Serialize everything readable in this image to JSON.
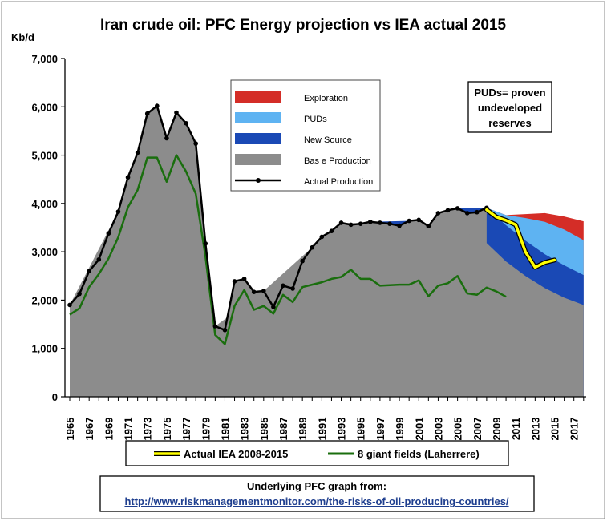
{
  "chart_data": {
    "type": "area",
    "title": "Iran crude oil: PFC Energy projection vs IEA actual 2015",
    "ylabel": "Kb/d",
    "xlabel": "",
    "ylim": [
      0,
      7000
    ],
    "yticks": [
      "0",
      "1,000",
      "2,000",
      "3,000",
      "4,000",
      "5,000",
      "6,000",
      "7,000"
    ],
    "xlim": [
      1965,
      2018
    ],
    "xticks": [
      "1965",
      "1967",
      "1969",
      "1971",
      "1973",
      "1975",
      "1977",
      "1979",
      "1981",
      "1983",
      "1985",
      "1987",
      "1989",
      "1991",
      "1993",
      "1995",
      "1997",
      "1999",
      "2001",
      "2003",
      "2005",
      "2007",
      "2009",
      "2011",
      "2013",
      "2015",
      "2017"
    ],
    "grid": false,
    "legend_position": "top-center",
    "colors": {
      "exploration": "#d42d27",
      "puds": "#5eb3f2",
      "new_source": "#1a49b5",
      "base_production": "#8c8c8c",
      "actual_production": "#000000",
      "actual_iea": "#ffff00",
      "giant_fields": "#1a6e0e"
    },
    "legend": [
      {
        "key": "exploration",
        "label": "Exploration"
      },
      {
        "key": "puds",
        "label": "PUDs"
      },
      {
        "key": "new_source",
        "label": "New Source"
      },
      {
        "key": "base_production",
        "label": "Bas e Production"
      },
      {
        "key": "actual_production",
        "label": "Actual Production"
      }
    ],
    "bottom_legend": [
      {
        "key": "actual_iea",
        "label": "Actual IEA 2008-2015"
      },
      {
        "key": "giant_fields",
        "label": "8 giant fields (Laherrere)"
      }
    ],
    "note": [
      "PUDs= proven",
      "undeveloped",
      "reserves"
    ],
    "source_label": "Underlying PFC graph from:",
    "source_url": "http://www.riskmanagementmonitor.com/the-risks-of-oil-producing-countries/",
    "series": [
      {
        "name": "Actual Production",
        "x": [
          1965,
          1966,
          1967,
          1968,
          1969,
          1970,
          1971,
          1972,
          1973,
          1974,
          1975,
          1976,
          1977,
          1978,
          1979,
          1980,
          1981,
          1982,
          1983,
          1984,
          1985,
          1986,
          1987,
          1988,
          1989,
          1990,
          1991,
          1992,
          1993,
          1994,
          1995,
          1996,
          1997,
          1998,
          1999,
          2000,
          2001,
          2002,
          2003,
          2004,
          2005,
          2006,
          2007,
          2008
        ],
        "values": [
          1900,
          2130,
          2600,
          2840,
          3380,
          3830,
          4540,
          5050,
          5860,
          6020,
          5350,
          5880,
          5660,
          5240,
          3170,
          1460,
          1380,
          2390,
          2440,
          2170,
          2190,
          1860,
          2300,
          2240,
          2810,
          3090,
          3310,
          3430,
          3600,
          3560,
          3580,
          3620,
          3600,
          3580,
          3540,
          3640,
          3660,
          3530,
          3800,
          3860,
          3900,
          3800,
          3820,
          3910
        ]
      },
      {
        "name": "Bas e Production",
        "x": [
          1965,
          1970,
          1975,
          1980,
          1985,
          1990,
          1993,
          2000,
          2002,
          2005,
          2008,
          2010,
          2012,
          2014,
          2016,
          2018
        ],
        "values": [
          1900,
          3830,
          5350,
          1460,
          2190,
          3090,
          3600,
          3560,
          3450,
          3480,
          3180,
          2800,
          2500,
          2250,
          2050,
          1900
        ]
      },
      {
        "name": "New Source",
        "x": [
          1996,
          2000,
          2002,
          2005,
          2008,
          2010,
          2012,
          2014,
          2016,
          2018
        ],
        "values": [
          3620,
          3640,
          3530,
          3900,
          3910,
          3550,
          3230,
          2950,
          2720,
          2520
        ]
      },
      {
        "name": "PUDs",
        "x": [
          2008,
          2010,
          2012,
          2014,
          2016,
          2018
        ],
        "values": [
          3910,
          3760,
          3700,
          3620,
          3460,
          3240
        ]
      },
      {
        "name": "Exploration",
        "x": [
          2008,
          2010,
          2012,
          2014,
          2016,
          2018
        ],
        "values": [
          3910,
          3760,
          3780,
          3800,
          3730,
          3630
        ]
      },
      {
        "name": "Actual IEA 2008-2015",
        "x": [
          2008,
          2009,
          2010,
          2011,
          2012,
          2013,
          2014,
          2015
        ],
        "values": [
          3870,
          3720,
          3650,
          3560,
          3000,
          2680,
          2780,
          2830
        ]
      },
      {
        "name": "8 giant fields (Laherrere)",
        "x": [
          1965,
          1966,
          1967,
          1968,
          1969,
          1970,
          1971,
          1972,
          1973,
          1974,
          1975,
          1976,
          1977,
          1978,
          1979,
          1980,
          1981,
          1982,
          1983,
          1984,
          1985,
          1986,
          1987,
          1988,
          1989,
          1990,
          1991,
          1992,
          1993,
          1994,
          1995,
          1996,
          1997,
          1998,
          1999,
          2000,
          2001,
          2002,
          2003,
          2004,
          2005,
          2006,
          2007,
          2008,
          2009,
          2010
        ],
        "values": [
          1700,
          1830,
          2270,
          2540,
          2860,
          3300,
          3920,
          4280,
          4950,
          4950,
          4450,
          5000,
          4660,
          4200,
          2900,
          1280,
          1090,
          1880,
          2210,
          1800,
          1880,
          1720,
          2110,
          1960,
          2270,
          2320,
          2370,
          2440,
          2480,
          2630,
          2440,
          2440,
          2300,
          2310,
          2320,
          2320,
          2410,
          2080,
          2300,
          2350,
          2500,
          2140,
          2110,
          2260,
          2180,
          2070
        ]
      }
    ]
  }
}
